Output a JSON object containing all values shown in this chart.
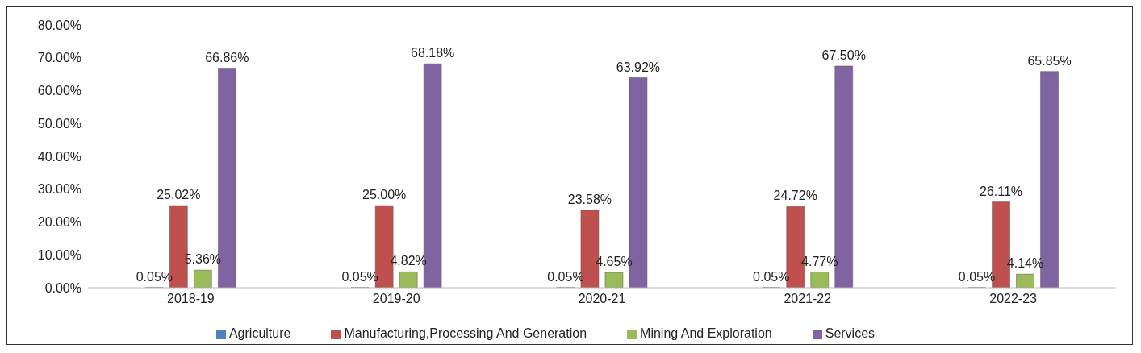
{
  "chart_data": {
    "type": "bar",
    "categories": [
      "2018-19",
      "2019-20",
      "2020-21",
      "2021-22",
      "2022-23"
    ],
    "series": [
      {
        "name": "Agriculture",
        "color": "#4f81bd",
        "values": [
          0.05,
          0.05,
          0.05,
          0.05,
          0.05
        ],
        "value_labels": [
          "0.05%",
          "0.05%",
          "0.05%",
          "0.05%",
          "0.05%"
        ]
      },
      {
        "name": "Manufacturing,Processing And Generation",
        "color": "#c0504d",
        "values": [
          25.02,
          25.0,
          23.58,
          24.72,
          26.11
        ],
        "value_labels": [
          "25.02%",
          "25.00%",
          "23.58%",
          "24.72%",
          "26.11%"
        ]
      },
      {
        "name": "Mining And Exploration",
        "color": "#9bbb59",
        "values": [
          5.36,
          4.82,
          4.65,
          4.77,
          4.14
        ],
        "value_labels": [
          "5.36%",
          "4.82%",
          "4.65%",
          "4.77%",
          "4.14%"
        ]
      },
      {
        "name": "Services",
        "color": "#8064a2",
        "values": [
          66.86,
          68.18,
          63.92,
          67.5,
          65.85
        ],
        "value_labels": [
          "66.86%",
          "68.18%",
          "63.92%",
          "67.50%",
          "65.85%"
        ]
      }
    ],
    "ylim": [
      0,
      80
    ],
    "yticks": [
      {
        "value": 0,
        "label": "0.00%"
      },
      {
        "value": 10,
        "label": "10.00%"
      },
      {
        "value": 20,
        "label": "20.00%"
      },
      {
        "value": 30,
        "label": "30.00%"
      },
      {
        "value": 40,
        "label": "40.00%"
      },
      {
        "value": 50,
        "label": "50.00%"
      },
      {
        "value": 60,
        "label": "60.00%"
      },
      {
        "value": 70,
        "label": "70.00%"
      },
      {
        "value": 80,
        "label": "80.00%"
      }
    ],
    "grid": false,
    "legend": "bottom"
  }
}
